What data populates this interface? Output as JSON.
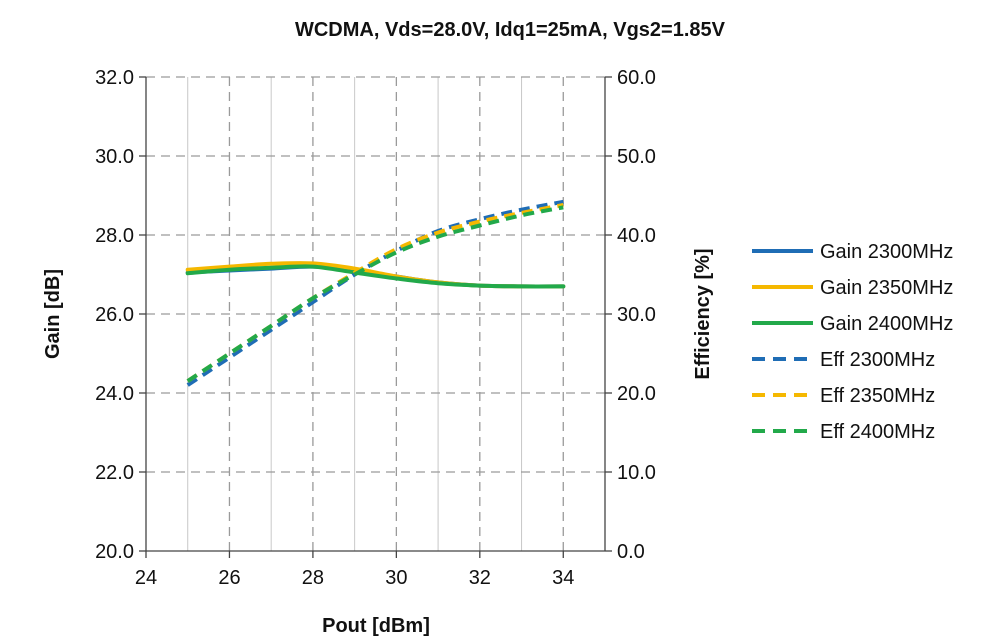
{
  "chart_data": {
    "type": "line",
    "title": "WCDMA, Vds=28.0V, Idq1=25mA, Vgs2=1.85V",
    "xlabel": "Pout [dBm]",
    "ylabel": "Gain [dB]",
    "y2label": "Efficiency [%]",
    "xlim": [
      24,
      35
    ],
    "ylim": [
      20,
      32
    ],
    "y2lim": [
      0,
      60
    ],
    "x_ticks": [
      24,
      26,
      28,
      30,
      32,
      34
    ],
    "x_tick_labels": [
      "24",
      "26",
      "28",
      "30",
      "32",
      "34"
    ],
    "y_ticks": [
      20,
      22,
      24,
      26,
      28,
      30,
      32
    ],
    "y_tick_labels": [
      "20.0",
      "22.0",
      "24.0",
      "26.0",
      "28.0",
      "30.0",
      "32.0"
    ],
    "y2_ticks": [
      0,
      10,
      20,
      30,
      40,
      50,
      60
    ],
    "y2_tick_labels": [
      "0.0",
      "10.0",
      "20.0",
      "30.0",
      "40.0",
      "50.0",
      "60.0"
    ],
    "grid": true,
    "legend_position": "right",
    "series": [
      {
        "name": "Gain 2300MHz",
        "axis": "left",
        "style": "solid",
        "color": "#1f6db5",
        "x": [
          25,
          26,
          27,
          28,
          29,
          30,
          31,
          32,
          33,
          34
        ],
        "values": [
          27.05,
          27.1,
          27.15,
          27.2,
          27.1,
          26.95,
          26.8,
          26.72,
          26.7,
          26.7
        ]
      },
      {
        "name": "Gain 2350MHz",
        "axis": "left",
        "style": "solid",
        "color": "#f5b800",
        "x": [
          25,
          26,
          27,
          28,
          29,
          30,
          31,
          32,
          33,
          34
        ],
        "values": [
          27.12,
          27.2,
          27.27,
          27.28,
          27.15,
          26.95,
          26.8,
          26.72,
          26.7,
          26.7
        ]
      },
      {
        "name": "Gain 2400MHz",
        "axis": "left",
        "style": "solid",
        "color": "#22a94a",
        "x": [
          25,
          26,
          27,
          28,
          29,
          30,
          31,
          32,
          33,
          34
        ],
        "values": [
          27.03,
          27.12,
          27.17,
          27.2,
          27.05,
          26.9,
          26.78,
          26.72,
          26.7,
          26.7
        ]
      },
      {
        "name": "Eff 2300MHz",
        "axis": "right",
        "style": "dashed",
        "color": "#1f6db5",
        "x": [
          25,
          26,
          27,
          28,
          29,
          30,
          31,
          32,
          33,
          34
        ],
        "values": [
          21,
          24.5,
          28,
          31.5,
          35,
          38,
          40.5,
          42,
          43.2,
          44.2
        ]
      },
      {
        "name": "Eff 2350MHz",
        "axis": "right",
        "style": "dashed",
        "color": "#f5b800",
        "x": [
          25,
          26,
          27,
          28,
          29,
          30,
          31,
          32,
          33,
          34
        ],
        "values": [
          21.5,
          25,
          28.5,
          32,
          35.2,
          38.2,
          40.3,
          41.7,
          42.8,
          43.8
        ]
      },
      {
        "name": "Eff 2400MHz",
        "axis": "right",
        "style": "dashed",
        "color": "#22a94a",
        "x": [
          25,
          26,
          27,
          28,
          29,
          30,
          31,
          32,
          33,
          34
        ],
        "values": [
          21.5,
          25,
          28.5,
          32,
          35,
          37.8,
          39.8,
          41.2,
          42.5,
          43.5
        ]
      }
    ]
  }
}
